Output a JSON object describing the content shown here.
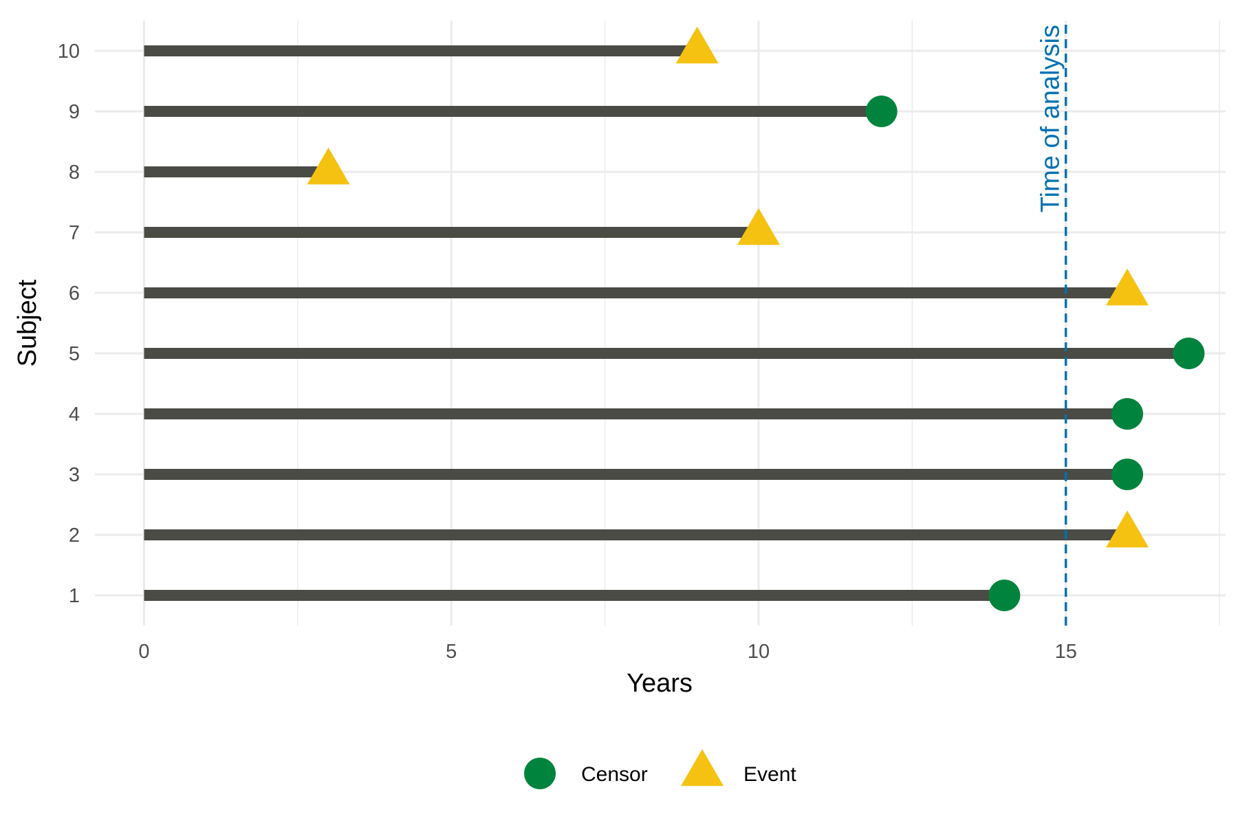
{
  "chart_data": {
    "type": "scatter",
    "subtype": "swimmer-lollipop",
    "title": "",
    "xlabel": "Years",
    "ylabel": "Subject",
    "xlim": [
      -0.8,
      17.6
    ],
    "ylim": [
      0.5,
      10.5
    ],
    "x_ticks": [
      0,
      5,
      10,
      15
    ],
    "x_minor_ticks": [
      2.5,
      7.5,
      12.5,
      17.5
    ],
    "y_ticks": [
      1,
      2,
      3,
      4,
      5,
      6,
      7,
      8,
      9,
      10
    ],
    "grid": true,
    "legend_position": "bottom",
    "reference_line": {
      "x": 15,
      "label": "Time of analysis",
      "color": "#0072B2",
      "style": "dashed"
    },
    "series": [
      {
        "name": "Censor",
        "shape": "circle",
        "color": "#00843D"
      },
      {
        "name": "Event",
        "shape": "triangle",
        "color": "#F5C211"
      }
    ],
    "subjects": [
      {
        "subject": 1,
        "years": 14,
        "status": "Censor"
      },
      {
        "subject": 2,
        "years": 16,
        "status": "Event"
      },
      {
        "subject": 3,
        "years": 16,
        "status": "Censor"
      },
      {
        "subject": 4,
        "years": 16,
        "status": "Censor"
      },
      {
        "subject": 5,
        "years": 17,
        "status": "Censor"
      },
      {
        "subject": 6,
        "years": 16,
        "status": "Event"
      },
      {
        "subject": 7,
        "years": 10,
        "status": "Event"
      },
      {
        "subject": 8,
        "years": 3,
        "status": "Event"
      },
      {
        "subject": 9,
        "years": 12,
        "status": "Censor"
      },
      {
        "subject": 10,
        "years": 9,
        "status": "Event"
      }
    ],
    "bar_color": "#4B4B45",
    "grid_color": "#EBEBEB"
  }
}
